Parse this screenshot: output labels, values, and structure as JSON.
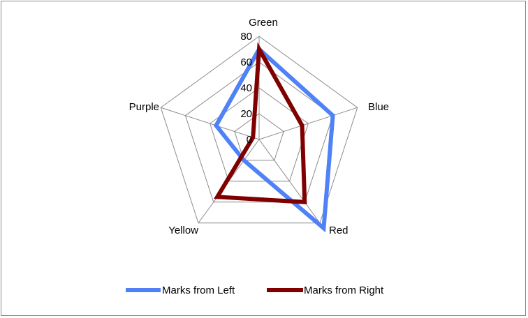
{
  "chart_data": {
    "type": "radar",
    "categories": [
      "Green",
      "Blue",
      "Red",
      "Yellow",
      "Purple"
    ],
    "rlim": [
      0,
      80
    ],
    "ticks": [
      0,
      20,
      40,
      60,
      80
    ],
    "tick_labels": [
      "0",
      "20",
      "40",
      "60",
      "80"
    ],
    "grid": true,
    "legend_position": "bottom",
    "series": [
      {
        "name": "Marks from Left",
        "values": [
          70,
          60,
          85,
          20,
          35
        ],
        "color": "#4F81F7"
      },
      {
        "name": "Marks from Right",
        "values": [
          70,
          35,
          60,
          55,
          5
        ],
        "color": "#800000"
      }
    ]
  }
}
